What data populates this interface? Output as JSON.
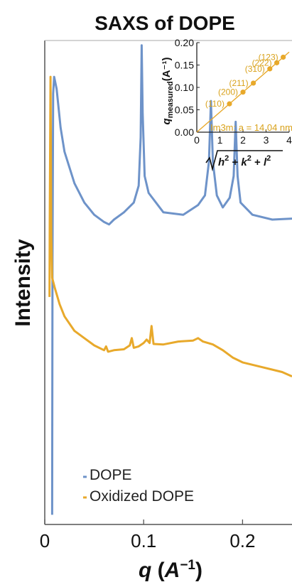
{
  "chart_data": [
    {
      "type": "line",
      "title": "SAXS of DOPE",
      "xlabel": "q (A⁻¹)",
      "ylabel": "Intensity",
      "xlim": [
        0.0,
        0.25
      ],
      "xticks": [
        0,
        0.1,
        0.2
      ],
      "xtick_labels": [
        "0",
        "0.1",
        "0.2"
      ],
      "y_scale": "arbitrary units, no ticks",
      "legend": {
        "placement": "bottom-left"
      },
      "series": [
        {
          "name": "DOPE",
          "color": "#6e93c9",
          "points": [
            [
              0.0075,
              0.02
            ],
            [
              0.0078,
              0.55
            ],
            [
              0.0085,
              0.89
            ],
            [
              0.0095,
              0.925
            ],
            [
              0.012,
              0.9
            ],
            [
              0.016,
              0.82
            ],
            [
              0.02,
              0.77
            ],
            [
              0.03,
              0.705
            ],
            [
              0.04,
              0.665
            ],
            [
              0.05,
              0.64
            ],
            [
              0.06,
              0.625
            ],
            [
              0.065,
              0.62
            ],
            [
              0.07,
              0.63
            ],
            [
              0.08,
              0.645
            ],
            [
              0.09,
              0.665
            ],
            [
              0.095,
              0.7
            ],
            [
              0.097,
              0.8
            ],
            [
              0.098,
              0.99
            ],
            [
              0.099,
              0.85
            ],
            [
              0.101,
              0.72
            ],
            [
              0.105,
              0.685
            ],
            [
              0.12,
              0.645
            ],
            [
              0.14,
              0.64
            ],
            [
              0.155,
              0.66
            ],
            [
              0.162,
              0.68
            ],
            [
              0.166,
              0.75
            ],
            [
              0.168,
              0.875
            ],
            [
              0.17,
              0.75
            ],
            [
              0.174,
              0.68
            ],
            [
              0.18,
              0.655
            ],
            [
              0.187,
              0.675
            ],
            [
              0.191,
              0.72
            ],
            [
              0.193,
              0.832
            ],
            [
              0.195,
              0.72
            ],
            [
              0.198,
              0.665
            ],
            [
              0.21,
              0.64
            ],
            [
              0.23,
              0.63
            ],
            [
              0.25,
              0.632
            ]
          ]
        },
        {
          "name": "Oxidized DOPE",
          "color": "#e8a92b",
          "points": [
            [
              0.0048,
              0.47
            ],
            [
              0.005,
              0.62
            ],
            [
              0.0058,
              0.925
            ],
            [
              0.0066,
              0.6
            ],
            [
              0.0075,
              0.51
            ],
            [
              0.01,
              0.49
            ],
            [
              0.015,
              0.455
            ],
            [
              0.02,
              0.43
            ],
            [
              0.03,
              0.4
            ],
            [
              0.04,
              0.385
            ],
            [
              0.05,
              0.37
            ],
            [
              0.06,
              0.36
            ],
            [
              0.062,
              0.368
            ],
            [
              0.064,
              0.357
            ],
            [
              0.07,
              0.36
            ],
            [
              0.08,
              0.362
            ],
            [
              0.086,
              0.37
            ],
            [
              0.088,
              0.385
            ],
            [
              0.09,
              0.365
            ],
            [
              0.095,
              0.368
            ],
            [
              0.1,
              0.375
            ],
            [
              0.103,
              0.382
            ],
            [
              0.106,
              0.375
            ],
            [
              0.108,
              0.41
            ],
            [
              0.11,
              0.373
            ],
            [
              0.12,
              0.372
            ],
            [
              0.135,
              0.378
            ],
            [
              0.15,
              0.38
            ],
            [
              0.155,
              0.385
            ],
            [
              0.16,
              0.378
            ],
            [
              0.17,
              0.372
            ],
            [
              0.18,
              0.36
            ],
            [
              0.19,
              0.345
            ],
            [
              0.2,
              0.335
            ],
            [
              0.22,
              0.325
            ],
            [
              0.24,
              0.315
            ],
            [
              0.25,
              0.306
            ]
          ]
        }
      ]
    },
    {
      "type": "scatter",
      "title": "",
      "xlabel": "√(h²+k²+l²)",
      "ylabel": "q_measured (A⁻¹)",
      "ylabel_main": "q",
      "ylabel_sub": "measured",
      "ylabel_unit": "(A⁻¹)",
      "xlim": [
        0,
        4
      ],
      "ylim": [
        0.0,
        0.2
      ],
      "xticks": [
        "0",
        "1",
        "2",
        "3",
        "4"
      ],
      "yticks": [
        "0.00",
        "0.05",
        "0.10",
        "0.15",
        "0.20"
      ],
      "annotation": "Im3m: a = 14.04 nm",
      "color": "#e8a92b",
      "fit_line": {
        "slope": 0.04475,
        "intercept": 0.0
      },
      "points": [
        {
          "label": "(110)",
          "x": 1.414,
          "y": 0.0633
        },
        {
          "label": "(200)",
          "x": 2.0,
          "y": 0.0895
        },
        {
          "label": "(211)",
          "x": 2.449,
          "y": 0.1096
        },
        {
          "label": "(310)",
          "x": 3.162,
          "y": 0.1415
        },
        {
          "label": "(222)",
          "x": 3.464,
          "y": 0.155
        },
        {
          "label": "(123)",
          "x": 3.742,
          "y": 0.1675
        }
      ]
    }
  ]
}
